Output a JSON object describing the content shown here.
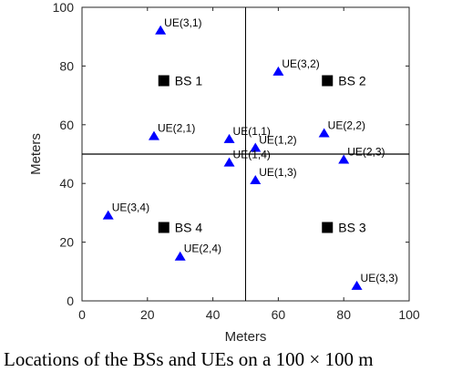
{
  "chart_data": {
    "type": "scatter",
    "xlabel": "Meters",
    "ylabel": "Meters",
    "xlim": [
      0,
      100
    ],
    "ylim": [
      0,
      100
    ],
    "xticks": [
      0,
      20,
      40,
      60,
      80,
      100
    ],
    "yticks": [
      0,
      20,
      40,
      60,
      80,
      100
    ],
    "grid": false,
    "divider_lines": {
      "vertical_x": 50,
      "horizontal_y": 50
    },
    "colors": {
      "bs": "#000000",
      "ue": "#0000ff",
      "axis": "#262626"
    },
    "base_stations": [
      {
        "label": "BS 1",
        "x": 25,
        "y": 75
      },
      {
        "label": "BS 2",
        "x": 75,
        "y": 75
      },
      {
        "label": "BS 3",
        "x": 75,
        "y": 25
      },
      {
        "label": "BS 4",
        "x": 25,
        "y": 25
      }
    ],
    "users": [
      {
        "label": "UE(3,1)",
        "x": 24,
        "y": 92
      },
      {
        "label": "UE(3,2)",
        "x": 60,
        "y": 78
      },
      {
        "label": "UE(2,1)",
        "x": 22,
        "y": 56
      },
      {
        "label": "UE(1,1)",
        "x": 45,
        "y": 55
      },
      {
        "label": "UE(1,2)",
        "x": 53,
        "y": 52
      },
      {
        "label": "UE(2,2)",
        "x": 74,
        "y": 57
      },
      {
        "label": "UE(1,4)",
        "x": 45,
        "y": 47
      },
      {
        "label": "UE(2,3)",
        "x": 80,
        "y": 48
      },
      {
        "label": "UE(1,3)",
        "x": 53,
        "y": 41
      },
      {
        "label": "UE(3,4)",
        "x": 8,
        "y": 29
      },
      {
        "label": "UE(2,4)",
        "x": 30,
        "y": 15
      },
      {
        "label": "UE(3,3)",
        "x": 84,
        "y": 5
      }
    ]
  },
  "caption": "Locations of the BSs and UEs on a 100 × 100 m"
}
